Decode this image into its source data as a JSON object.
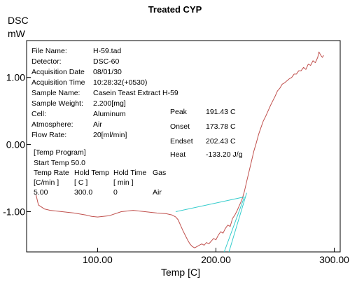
{
  "chart_data": {
    "type": "line",
    "title": "Treated CYP",
    "ylabel_line1": "DSC",
    "ylabel_line2": "mW",
    "xlabel": "Temp   [C]",
    "xlim": [
      40,
      305
    ],
    "ylim": [
      -1.6,
      1.55
    ],
    "x_ticks": [
      100,
      200,
      300
    ],
    "x_tick_labels": [
      "100.00",
      "200.00",
      "300.00"
    ],
    "y_ticks": [
      1.0,
      0.0,
      -1.0
    ],
    "y_tick_labels": [
      "1.00",
      "0.00",
      "-1.00"
    ],
    "grid": false,
    "series": [
      {
        "color": "#c0504d",
        "x": [
          48,
          50,
          55,
          60,
          70,
          80,
          90,
          95,
          100,
          110,
          120,
          130,
          140,
          150,
          158,
          163,
          166,
          168,
          170,
          172,
          174,
          176,
          178,
          180,
          182,
          184,
          186,
          188,
          190,
          192,
          194,
          196,
          198,
          200,
          202,
          204,
          206,
          208,
          210,
          212,
          214,
          216,
          218,
          220,
          222,
          224,
          226,
          228,
          230,
          232,
          234,
          236,
          238,
          240,
          242,
          244,
          246,
          248,
          250,
          252,
          254,
          256,
          258,
          260,
          262,
          264,
          266,
          268,
          270,
          272,
          274,
          276,
          278,
          280,
          282,
          284,
          286,
          287,
          288,
          289,
          290,
          291
        ],
        "y": [
          -0.75,
          -0.9,
          -0.96,
          -0.98,
          -1.0,
          -1.02,
          -1.05,
          -1.07,
          -1.08,
          -1.06,
          -1.0,
          -0.98,
          -1.0,
          -1.02,
          -1.03,
          -1.05,
          -1.08,
          -1.12,
          -1.2,
          -1.28,
          -1.35,
          -1.42,
          -1.48,
          -1.52,
          -1.54,
          -1.52,
          -1.5,
          -1.48,
          -1.5,
          -1.46,
          -1.48,
          -1.44,
          -1.4,
          -1.42,
          -1.35,
          -1.3,
          -1.32,
          -1.25,
          -1.2,
          -1.22,
          -1.1,
          -1.05,
          -0.98,
          -0.9,
          -0.82,
          -0.7,
          -0.55,
          -0.4,
          -0.25,
          -0.1,
          0.02,
          0.15,
          0.25,
          0.35,
          0.42,
          0.5,
          0.58,
          0.65,
          0.72,
          0.8,
          0.84,
          0.9,
          0.92,
          0.95,
          0.98,
          1.0,
          1.05,
          1.05,
          1.1,
          1.1,
          1.15,
          1.12,
          1.2,
          1.18,
          1.25,
          1.22,
          1.3,
          1.38,
          1.35,
          1.32,
          1.3,
          1.33
        ]
      },
      {
        "color": "#33cccc",
        "x": [
          166,
          224
        ],
        "y": [
          -1.0,
          -0.78
        ]
      },
      {
        "color": "#33cccc",
        "x": [
          207,
          224
        ],
        "y": [
          -1.62,
          -0.78
        ]
      },
      {
        "color": "#33cccc",
        "x": [
          211,
          226
        ],
        "y": [
          -1.62,
          -0.72
        ]
      }
    ]
  },
  "info": {
    "file_name_label": "File Name:",
    "file_name_value": "H-59.tad",
    "detector_label": "Detector:",
    "detector_value": "DSC-60",
    "acq_date_label": "Acquisition Date",
    "acq_date_value": "08/01/30",
    "acq_time_label": "Acquisition Time",
    "acq_time_value": "10:28:32(+0530)",
    "sample_name_label": "Sample Name:",
    "sample_name_value": "Casein Teast Extract H-59",
    "sample_weight_label": "Sample Weight:",
    "sample_weight_value": "2.200[mg]",
    "cell_label": "Cell:",
    "cell_value": "Aluminum",
    "atmosphere_label": "Atmosphere:",
    "atmosphere_value": "Air",
    "flow_rate_label": "Flow Rate:",
    "flow_rate_value": "20[ml/min]"
  },
  "results": {
    "peak_label": "Peak",
    "peak_value": "191.43 C",
    "onset_label": "Onset",
    "onset_value": "173.78 C",
    "endset_label": "Endset",
    "endset_value": "202.43 C",
    "heat_label": "Heat",
    "heat_value": "-133.20 J/g"
  },
  "program": {
    "header": "[Temp Program]",
    "start_temp": "Start Temp   50.0",
    "col_rate": "Temp Rate",
    "col_hold_temp": "Hold Temp",
    "col_hold_time": "Hold Time",
    "col_gas": "Gas",
    "unit_rate": "[C/min ]",
    "unit_hold_temp": "[  C  ]",
    "unit_hold_time": "[  min  ]",
    "row_rate": "5.00",
    "row_hold_temp": "300.0",
    "row_hold_time": "0",
    "row_gas": "Air"
  }
}
